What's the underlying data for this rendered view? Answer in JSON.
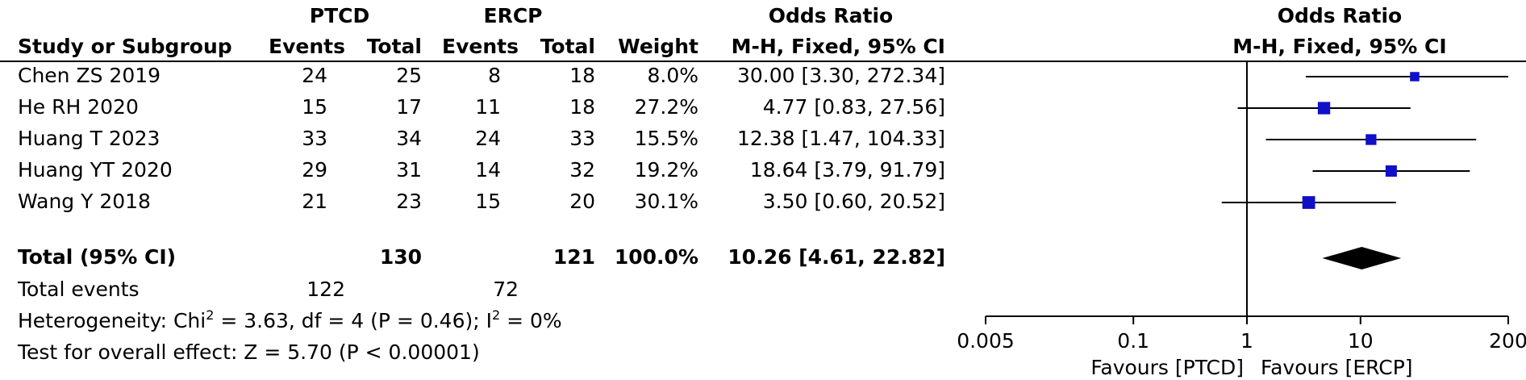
{
  "table": {
    "group_headers": [
      "PTCD",
      "ERCP",
      "Odds Ratio"
    ],
    "column_headers": [
      "Study or Subgroup",
      "Events",
      "Total",
      "Events",
      "Total",
      "Weight",
      "M-H, Fixed, 95% CI"
    ]
  },
  "plot_header": {
    "title": "Odds Ratio",
    "method": "M-H, Fixed, 95% CI"
  },
  "studies": [
    {
      "name": "Chen ZS 2019",
      "e1": "24",
      "t1": "25",
      "e2": "8",
      "t2": "18",
      "weight": "8.0%",
      "ci_text": "30.00 [3.30, 272.34]"
    },
    {
      "name": "He RH 2020",
      "e1": "15",
      "t1": "17",
      "e2": "11",
      "t2": "18",
      "weight": "27.2%",
      "ci_text": "4.77 [0.83, 27.56]"
    },
    {
      "name": "Huang T 2023",
      "e1": "33",
      "t1": "34",
      "e2": "24",
      "t2": "33",
      "weight": "15.5%",
      "ci_text": "12.38 [1.47, 104.33]"
    },
    {
      "name": "Huang YT 2020",
      "e1": "29",
      "t1": "31",
      "e2": "14",
      "t2": "32",
      "weight": "19.2%",
      "ci_text": "18.64 [3.79, 91.79]"
    },
    {
      "name": "Wang Y 2018",
      "e1": "21",
      "t1": "23",
      "e2": "15",
      "t2": "20",
      "weight": "30.1%",
      "ci_text": "3.50 [0.60, 20.52]"
    }
  ],
  "total": {
    "label": "Total (95% CI)",
    "t1": "130",
    "t2": "121",
    "weight": "100.0%",
    "ci_text": "10.26 [4.61, 22.82]"
  },
  "total_events": {
    "label": "Total events",
    "e1": "122",
    "e2": "72"
  },
  "heterogeneity": {
    "prefix": "Heterogeneity: Chi",
    "sup1": "2",
    "mid": " = 3.63, df = 4 (P = 0.46); I",
    "sup2": "2",
    "suffix": " = 0%"
  },
  "overall_effect": "Test for overall effect: Z = 5.70 (P < 0.00001)",
  "axis": {
    "ticks": [
      0.005,
      0.1,
      1,
      10,
      200
    ],
    "tick_labels": [
      "0.005",
      "0.1",
      "1",
      "10",
      "200"
    ],
    "favours_left": "Favours [PTCD]",
    "favours_right": "Favours [ERCP]"
  },
  "colors": {
    "marker": "#1010c8",
    "diamond": "#000000",
    "line": "#000000"
  },
  "chart_data": {
    "type": "forest",
    "x_scale": "log",
    "xlim": [
      0.005,
      200
    ],
    "reference_line": 1,
    "points": [
      {
        "name": "Chen ZS 2019",
        "or": 30.0,
        "lower": 3.3,
        "upper": 272.34,
        "weight": 8.0
      },
      {
        "name": "He RH 2020",
        "or": 4.77,
        "lower": 0.83,
        "upper": 27.56,
        "weight": 27.2
      },
      {
        "name": "Huang T 2023",
        "or": 12.38,
        "lower": 1.47,
        "upper": 104.33,
        "weight": 15.5
      },
      {
        "name": "Huang YT 2020",
        "or": 18.64,
        "lower": 3.79,
        "upper": 91.79,
        "weight": 19.2
      },
      {
        "name": "Wang Y 2018",
        "or": 3.5,
        "lower": 0.6,
        "upper": 20.52,
        "weight": 30.1
      }
    ],
    "pooled": {
      "or": 10.26,
      "lower": 4.61,
      "upper": 22.82
    }
  }
}
